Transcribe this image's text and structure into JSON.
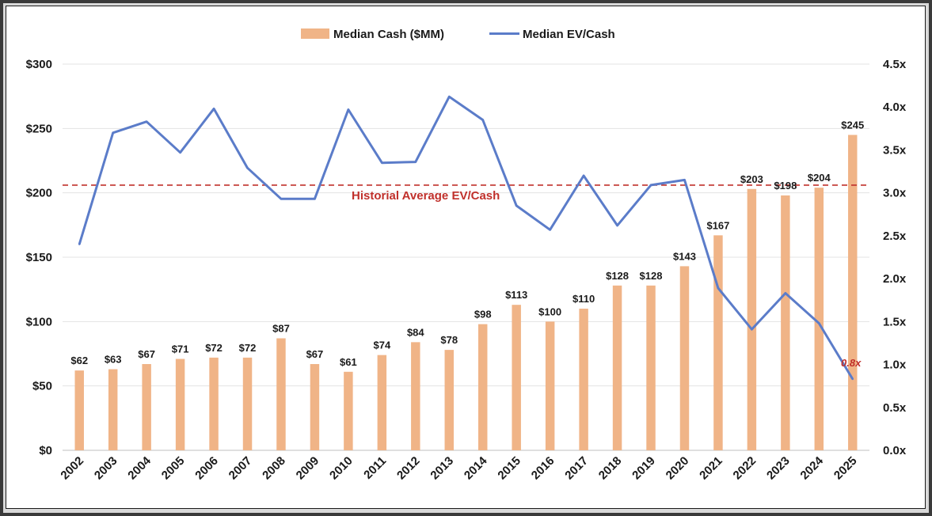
{
  "chart_data": {
    "type": "bar",
    "categories": [
      "2002",
      "2003",
      "2004",
      "2005",
      "2006",
      "2007",
      "2008",
      "2009",
      "2010",
      "2011",
      "2012",
      "2013",
      "2014",
      "2015",
      "2016",
      "2017",
      "2018",
      "2019",
      "2020",
      "2021",
      "2022",
      "2023",
      "2024",
      "2025"
    ],
    "series": [
      {
        "name": "Median Cash ($MM)",
        "type": "bar",
        "axis": "left",
        "color": "#f0b487",
        "values": [
          62,
          63,
          67,
          71,
          72,
          72,
          87,
          67,
          61,
          74,
          84,
          78,
          98,
          113,
          100,
          110,
          128,
          128,
          143,
          167,
          203,
          198,
          204,
          245
        ],
        "labels": [
          "$62",
          "$63",
          "$67",
          "$71",
          "$72",
          "$72",
          "$87",
          "$67",
          "$61",
          "$74",
          "$84",
          "$78",
          "$98",
          "$113",
          "$100",
          "$110",
          "$128",
          "$128",
          "$143",
          "$167",
          "$203",
          "$198",
          "$204",
          "$245"
        ]
      },
      {
        "name": "Median EV/Cash",
        "type": "line",
        "axis": "right",
        "color": "#5b7cc9",
        "values": [
          2.4,
          3.7,
          3.83,
          3.47,
          3.98,
          3.29,
          2.93,
          2.93,
          3.97,
          3.35,
          3.36,
          4.12,
          3.85,
          2.85,
          2.57,
          3.2,
          2.62,
          3.09,
          3.15,
          1.89,
          1.41,
          1.83,
          1.48,
          0.83
        ]
      }
    ],
    "left_axis": {
      "ylim": [
        0,
        300
      ],
      "ticks": [
        "$0",
        "$50",
        "$100",
        "$150",
        "$200",
        "$250",
        "$300"
      ]
    },
    "right_axis": {
      "ylim": [
        0,
        4.5
      ],
      "ticks": [
        "0.0x",
        "0.5x",
        "1.0x",
        "1.5x",
        "2.0x",
        "2.5x",
        "3.0x",
        "3.5x",
        "4.0x",
        "4.5x"
      ]
    },
    "reference_line": {
      "label": "Historial Average EV/Cash",
      "value": 3.09,
      "axis": "right",
      "color": "#c0302b"
    },
    "last_point_label": "0.8x",
    "legend_position": "top-center",
    "grid": true
  }
}
